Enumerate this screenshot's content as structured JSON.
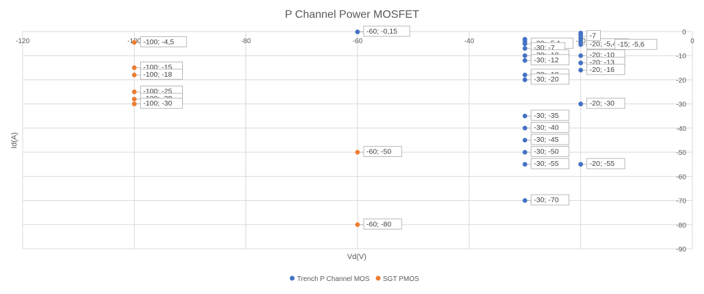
{
  "chart_data": {
    "type": "scatter",
    "title": "P Channel Power MOSFET",
    "xlabel": "Vd(V)",
    "ylabel": "Id(A)",
    "xlim": [
      -120,
      0
    ],
    "ylim": [
      -90,
      0
    ],
    "x_ticks": [
      "-120",
      "-100",
      "-80",
      "-60",
      "-40",
      "-20",
      "0"
    ],
    "y_ticks": [
      "0",
      "-10",
      "-20",
      "-30",
      "-40",
      "-50",
      "-60",
      "-70",
      "-80",
      "-90"
    ],
    "grid": true,
    "legend_position": "bottom",
    "series": [
      {
        "name": "Trench P Channel MOS",
        "color": "#4472c4",
        "points": [
          {
            "x": -60,
            "y": -0.15,
            "label": "-60; -0,15"
          },
          {
            "x": -30,
            "y": -3.2,
            "label": ""
          },
          {
            "x": -30,
            "y": -4.1,
            "label": ""
          },
          {
            "x": -30,
            "y": -5.1,
            "label": "-30; -5,1"
          },
          {
            "x": -30,
            "y": -7,
            "label": "-30; -7"
          },
          {
            "x": -30,
            "y": -10,
            "label": "-30; -10"
          },
          {
            "x": -30,
            "y": -12,
            "label": "-30; -12"
          },
          {
            "x": -30,
            "y": -18,
            "label": "-30; -18"
          },
          {
            "x": -30,
            "y": -20,
            "label": "-30; -20"
          },
          {
            "x": -30,
            "y": -35,
            "label": "-30; -35"
          },
          {
            "x": -30,
            "y": -40,
            "label": "-30; -40"
          },
          {
            "x": -30,
            "y": -45,
            "label": "-30; -45"
          },
          {
            "x": -30,
            "y": -50,
            "label": "-30; -50"
          },
          {
            "x": -30,
            "y": -55,
            "label": "-30; -55"
          },
          {
            "x": -30,
            "y": -70,
            "label": "-30; -70"
          },
          {
            "x": -20,
            "y": -0.6,
            "label": ""
          },
          {
            "x": -20,
            "y": -1.4,
            "label": ""
          },
          {
            "x": -20,
            "y": -2.6,
            "label": ""
          },
          {
            "x": -20,
            "y": -4,
            "label": ""
          },
          {
            "x": -20,
            "y": -5.4,
            "label": "-20; -5,4"
          },
          {
            "x": -20,
            "y": -10,
            "label": "-20; -10"
          },
          {
            "x": -20,
            "y": -13,
            "label": "-20; -13"
          },
          {
            "x": -20,
            "y": -16,
            "label": "-20; -16"
          },
          {
            "x": -20,
            "y": -30,
            "label": "-20; -30"
          },
          {
            "x": -20,
            "y": -55,
            "label": "-20; -55"
          }
        ]
      },
      {
        "name": "SGT PMOS",
        "color": "#ed7d31",
        "points": [
          {
            "x": -100,
            "y": -4.5,
            "label": "-100; -4,5"
          },
          {
            "x": -100,
            "y": -15,
            "label": "-100; -15"
          },
          {
            "x": -100,
            "y": -18,
            "label": "-100; -18"
          },
          {
            "x": -100,
            "y": -25,
            "label": "-100; -25"
          },
          {
            "x": -100,
            "y": -28,
            "label": "-100; -28"
          },
          {
            "x": -100,
            "y": -30,
            "label": "-100; -30"
          },
          {
            "x": -60,
            "y": -50,
            "label": "-60; -50"
          },
          {
            "x": -60,
            "y": -80,
            "label": "-60; -80"
          }
        ]
      }
    ],
    "extra_labels": [
      {
        "x": -20,
        "y": -2.0,
        "text": "-7"
      },
      {
        "x": -15,
        "y": -5.6,
        "text": "-15; -5,6"
      }
    ]
  }
}
